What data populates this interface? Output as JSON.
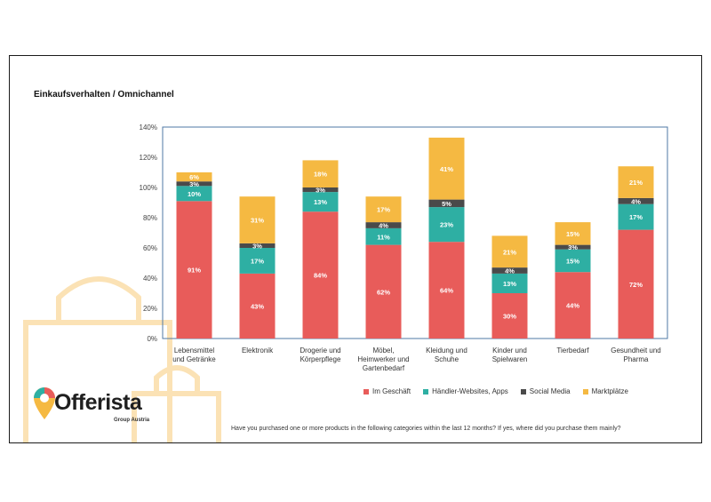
{
  "title": "Einkaufsverhalten / Omnichannel",
  "footnote": "Have you purchased one or more products in the following categories within the last 12 months? If yes, where did you purchase them mainly?",
  "logo": {
    "name": "Offerista",
    "sub": "Group Austria"
  },
  "colors": {
    "im_geschaeft": "#E85C5A",
    "haendler": "#2EAFA3",
    "social": "#4A4A4A",
    "markt": "#F5B942",
    "axis_frame": "#4F79A6",
    "deco": "#FBE2B5"
  },
  "chart_data": {
    "type": "bar",
    "stacked": true,
    "ylim": [
      0,
      140
    ],
    "yticks": [
      "0%",
      "20%",
      "40%",
      "60%",
      "80%",
      "100%",
      "120%",
      "140%"
    ],
    "ytick_values": [
      0,
      20,
      40,
      60,
      80,
      100,
      120,
      140
    ],
    "categories": [
      [
        "Lebensmittel",
        "und Getränke"
      ],
      [
        "Elektronik"
      ],
      [
        "Drogerie und",
        "Körperpflege"
      ],
      [
        "Möbel,",
        "Heimwerker und",
        "Gartenbedarf"
      ],
      [
        "Kleidung und",
        "Schuhe"
      ],
      [
        "Kinder und",
        "Spielwaren"
      ],
      [
        "Tierbedarf"
      ],
      [
        "Gesundheit und",
        "Pharma"
      ]
    ],
    "series": [
      {
        "name": "Im Geschäft",
        "values": [
          91,
          43,
          84,
          62,
          64,
          30,
          44,
          72
        ],
        "labels": [
          "91%",
          "43%",
          "84%",
          "62%",
          "64%",
          "30%",
          "44%",
          "72%"
        ]
      },
      {
        "name": "Händler-Websites, Apps",
        "values": [
          10,
          17,
          13,
          11,
          23,
          13,
          15,
          17
        ],
        "labels": [
          "10%",
          "17%",
          "13%",
          "11%",
          "23%",
          "13%",
          "15%",
          "17%"
        ]
      },
      {
        "name": "Social Media",
        "values": [
          3,
          3,
          3,
          4,
          5,
          4,
          3,
          4
        ],
        "labels": [
          "3%",
          "3%",
          "3%",
          "4%",
          "5%",
          "4%",
          "3%",
          "4%"
        ]
      },
      {
        "name": "Marktplätze",
        "values": [
          6,
          31,
          18,
          17,
          41,
          21,
          15,
          21
        ],
        "labels": [
          "6%",
          "31%",
          "18%",
          "17%",
          "41%",
          "21%",
          "15%",
          "21%"
        ]
      }
    ],
    "legend_position": "bottom-right",
    "grid": false
  }
}
